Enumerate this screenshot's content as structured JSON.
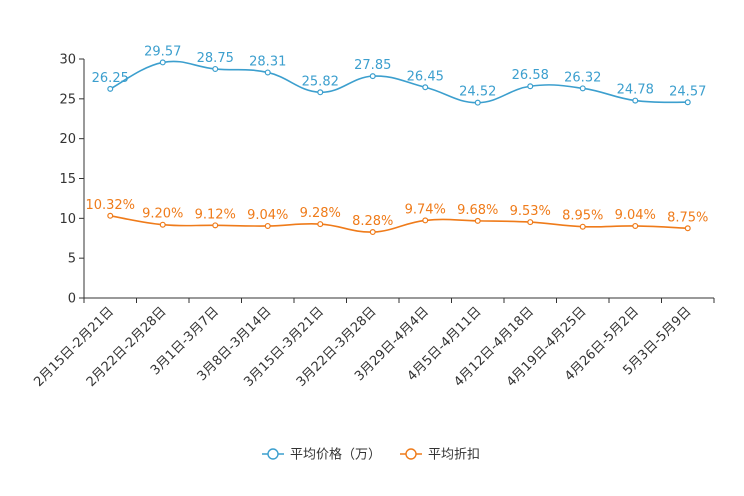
{
  "chart_data": {
    "type": "line",
    "categories": [
      "2月15日-2月21日",
      "2月22日-2月28日",
      "3月1日-3月7日",
      "3月8日-3月14日",
      "3月15日-3月21日",
      "3月22日-3月28日",
      "3月29日-4月4日",
      "4月5日-4月11日",
      "4月12日-4月18日",
      "4月19日-4月25日",
      "4月26日-5月2日",
      "5月3日-5月9日"
    ],
    "ylim": [
      0,
      30
    ],
    "yticks": [
      0,
      5,
      10,
      15,
      20,
      25,
      30
    ],
    "series": [
      {
        "name": "平均价格（万）",
        "color": "#3c9fce",
        "values": [
          26.25,
          29.57,
          28.75,
          28.31,
          25.82,
          27.85,
          26.45,
          24.52,
          26.58,
          26.32,
          24.78,
          24.57
        ],
        "labels": [
          "26.25",
          "29.57",
          "28.75",
          "28.31",
          "25.82",
          "27.85",
          "26.45",
          "24.52",
          "26.58",
          "26.32",
          "24.78",
          "24.57"
        ]
      },
      {
        "name": "平均折扣",
        "color": "#ef7b1a",
        "values": [
          10.32,
          9.2,
          9.12,
          9.04,
          9.28,
          8.28,
          9.74,
          9.68,
          9.53,
          8.95,
          9.04,
          8.75
        ],
        "labels": [
          "10.32%",
          "9.20%",
          "9.12%",
          "9.04%",
          "9.28%",
          "8.28%",
          "9.74%",
          "9.68%",
          "9.53%",
          "8.95%",
          "9.04%",
          "8.75%"
        ]
      }
    ]
  }
}
